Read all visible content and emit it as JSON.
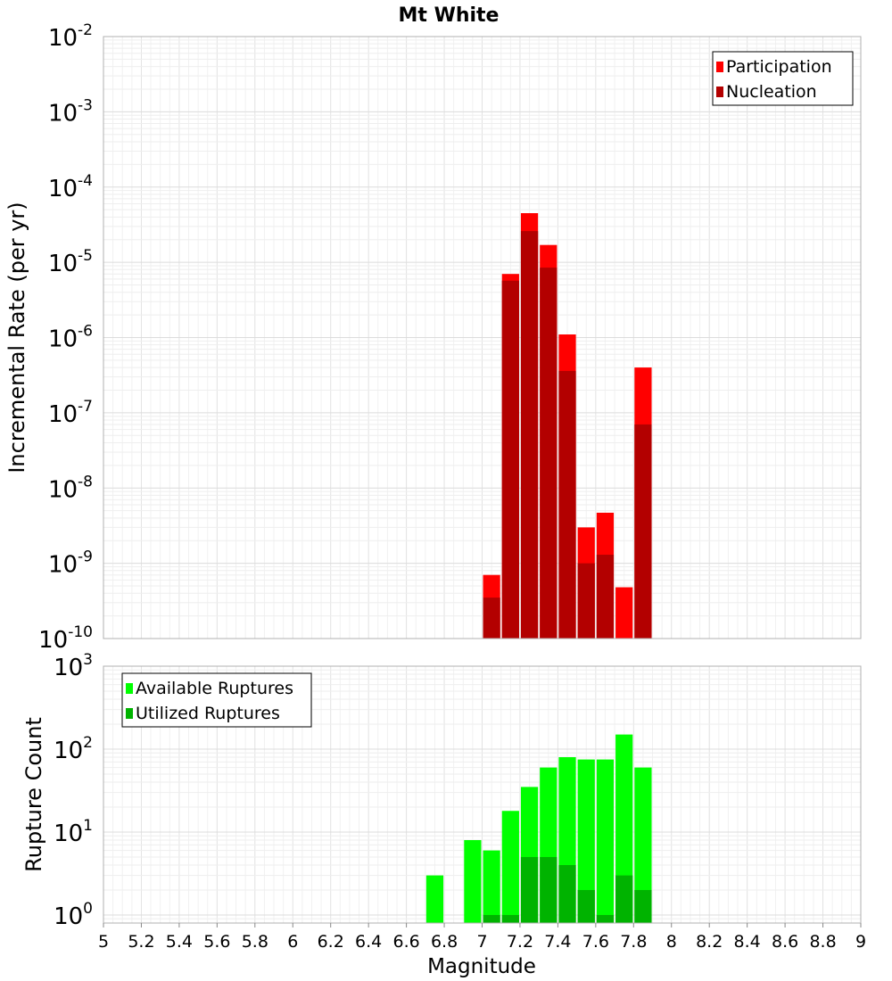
{
  "chart_data": {
    "title": "Mt White",
    "xlabel": "Magnitude",
    "xlim": [
      5,
      9
    ],
    "x_ticks": [
      "5",
      "5.2",
      "5.4",
      "5.6",
      "5.8",
      "6",
      "6.2",
      "6.4",
      "6.6",
      "6.8",
      "7",
      "7.2",
      "7.4",
      "7.6",
      "7.8",
      "8",
      "8.2",
      "8.4",
      "8.6",
      "8.8",
      "9"
    ],
    "grid": true,
    "panels": [
      {
        "type": "bar",
        "scale": "log",
        "ylabel": "Incremental Rate (per yr)",
        "ylim": [
          1e-10,
          0.01
        ],
        "y_ticks": [
          {
            "value": 1e-10,
            "base": "10",
            "exp": "-10"
          },
          {
            "value": 1e-09,
            "base": "10",
            "exp": "-9"
          },
          {
            "value": 1e-08,
            "base": "10",
            "exp": "-8"
          },
          {
            "value": 1e-07,
            "base": "10",
            "exp": "-7"
          },
          {
            "value": 1e-06,
            "base": "10",
            "exp": "-6"
          },
          {
            "value": 1e-05,
            "base": "10",
            "exp": "-5"
          },
          {
            "value": 0.0001,
            "base": "10",
            "exp": "-4"
          },
          {
            "value": 0.001,
            "base": "10",
            "exp": "-3"
          },
          {
            "value": 0.01,
            "base": "10",
            "exp": "-2"
          }
        ],
        "legend_position": "top-right",
        "series": [
          {
            "name": "Participation",
            "color": "#ff0000",
            "x": [
              7.05,
              7.15,
              7.25,
              7.35,
              7.45,
              7.55,
              7.65,
              7.75,
              7.85
            ],
            "values": [
              7e-10,
              7e-06,
              4.5e-05,
              1.7e-05,
              1.1e-06,
              3e-09,
              4.7e-09,
              4.8e-10,
              4e-07
            ]
          },
          {
            "name": "Nucleation",
            "color": "#b30000",
            "x": [
              7.05,
              7.15,
              7.25,
              7.35,
              7.45,
              7.55,
              7.65,
              7.85
            ],
            "values": [
              3.5e-10,
              5.7e-06,
              2.6e-05,
              8.5e-06,
              3.6e-07,
              1e-09,
              1.3e-09,
              7e-08
            ]
          }
        ]
      },
      {
        "type": "bar",
        "scale": "log",
        "ylabel": "Rupture Count",
        "ylim": [
          0.8,
          1000
        ],
        "y_ticks": [
          {
            "value": 1,
            "base": "10",
            "exp": "0"
          },
          {
            "value": 10,
            "base": "10",
            "exp": "1"
          },
          {
            "value": 100,
            "base": "10",
            "exp": "2"
          },
          {
            "value": 1000,
            "base": "10",
            "exp": "3"
          }
        ],
        "legend_position": "top-left",
        "series": [
          {
            "name": "Available Ruptures",
            "color": "#00ff00",
            "x": [
              6.75,
              6.95,
              7.05,
              7.15,
              7.25,
              7.35,
              7.45,
              7.55,
              7.65,
              7.75,
              7.85
            ],
            "values": [
              3,
              8,
              6,
              18,
              35,
              60,
              80,
              75,
              75,
              150,
              60
            ]
          },
          {
            "name": "Utilized Ruptures",
            "color": "#00b300",
            "x": [
              7.05,
              7.15,
              7.25,
              7.35,
              7.45,
              7.55,
              7.65,
              7.75,
              7.85
            ],
            "values": [
              1,
              1,
              5,
              5,
              4,
              2,
              1,
              3,
              2
            ]
          }
        ]
      }
    ]
  }
}
